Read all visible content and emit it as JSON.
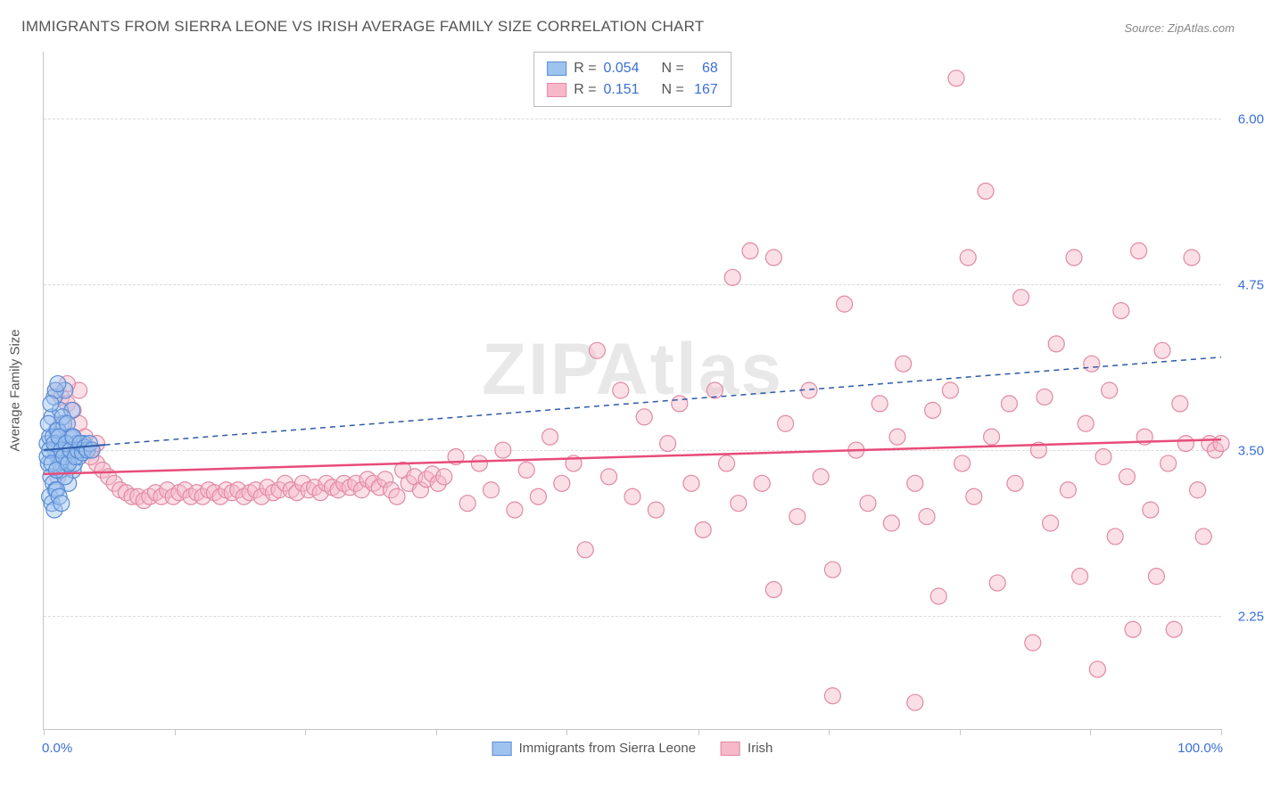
{
  "title": "IMMIGRANTS FROM SIERRA LEONE VS IRISH AVERAGE FAMILY SIZE CORRELATION CHART",
  "source_prefix": "Source: ",
  "source_name": "ZipAtlas.com",
  "watermark": "ZIPAtlas",
  "y_axis_title": "Average Family Size",
  "chart": {
    "type": "scatter",
    "xlim": [
      0,
      100
    ],
    "ylim": [
      1.4,
      6.5
    ],
    "y_ticks": [
      2.25,
      3.5,
      4.75,
      6.0
    ],
    "y_tick_labels": [
      "2.25",
      "3.50",
      "4.75",
      "6.00"
    ],
    "x_ticks": [
      0,
      11.1,
      22.2,
      33.3,
      44.4,
      55.6,
      66.7,
      77.8,
      88.9,
      100
    ],
    "x_label_min": "0.0%",
    "x_label_max": "100.0%",
    "background_color": "#ffffff",
    "grid_color": "#d9d9d9",
    "axis_color": "#c7c7c7",
    "marker_radius": 9,
    "marker_stroke_width": 1.2,
    "series": [
      {
        "name": "Immigrants from Sierra Leone",
        "fill_color": "#9ec3ef",
        "fill_opacity": 0.45,
        "stroke_color": "#5a8bd4",
        "R": "0.054",
        "N": "68",
        "trend": {
          "x1": 0,
          "y1": 3.5,
          "x2": 5.2,
          "y2": 3.54,
          "ext_x2": 100,
          "ext_y2": 4.2,
          "color": "#2e5aa8",
          "width": 2,
          "dash": "6,5"
        },
        "points": [
          [
            0.3,
            3.55
          ],
          [
            0.4,
            3.4
          ],
          [
            0.5,
            3.6
          ],
          [
            0.6,
            3.3
          ],
          [
            0.7,
            3.75
          ],
          [
            0.8,
            3.25
          ],
          [
            0.9,
            3.9
          ],
          [
            1.0,
            3.2
          ],
          [
            1.1,
            3.65
          ],
          [
            1.2,
            3.45
          ],
          [
            1.3,
            3.55
          ],
          [
            1.4,
            3.8
          ],
          [
            1.5,
            3.35
          ],
          [
            1.6,
            3.5
          ],
          [
            1.7,
            3.7
          ],
          [
            1.8,
            3.95
          ],
          [
            1.9,
            3.4
          ],
          [
            2.0,
            3.55
          ],
          [
            2.1,
            3.25
          ],
          [
            2.2,
            3.6
          ],
          [
            2.3,
            3.45
          ],
          [
            2.4,
            3.8
          ],
          [
            2.5,
            3.35
          ],
          [
            2.6,
            3.5
          ],
          [
            0.5,
            3.15
          ],
          [
            0.7,
            3.1
          ],
          [
            0.9,
            3.05
          ],
          [
            1.1,
            3.2
          ],
          [
            1.3,
            3.15
          ],
          [
            1.5,
            3.1
          ],
          [
            1.0,
            3.95
          ],
          [
            1.2,
            4.0
          ],
          [
            0.4,
            3.7
          ],
          [
            0.6,
            3.85
          ],
          [
            0.8,
            3.6
          ],
          [
            1.0,
            3.5
          ],
          [
            1.2,
            3.65
          ],
          [
            1.4,
            3.4
          ],
          [
            1.6,
            3.75
          ],
          [
            1.8,
            3.3
          ],
          [
            2.0,
            3.7
          ],
          [
            2.2,
            3.5
          ],
          [
            2.4,
            3.6
          ],
          [
            2.6,
            3.4
          ],
          [
            2.8,
            3.55
          ],
          [
            3.0,
            3.45
          ],
          [
            3.2,
            3.5
          ],
          [
            3.4,
            3.55
          ],
          [
            0.3,
            3.45
          ],
          [
            0.5,
            3.5
          ],
          [
            0.7,
            3.4
          ],
          [
            0.9,
            3.55
          ],
          [
            1.1,
            3.35
          ],
          [
            1.3,
            3.6
          ],
          [
            1.5,
            3.5
          ],
          [
            1.7,
            3.45
          ],
          [
            1.9,
            3.55
          ],
          [
            2.1,
            3.4
          ],
          [
            2.3,
            3.5
          ],
          [
            2.5,
            3.6
          ],
          [
            2.7,
            3.45
          ],
          [
            2.9,
            3.5
          ],
          [
            3.1,
            3.55
          ],
          [
            3.3,
            3.48
          ],
          [
            3.5,
            3.52
          ],
          [
            3.7,
            3.5
          ],
          [
            3.9,
            3.55
          ],
          [
            4.1,
            3.5
          ]
        ]
      },
      {
        "name": "Irish",
        "fill_color": "#f7b8c9",
        "fill_opacity": 0.45,
        "stroke_color": "#e08aa3",
        "R": "0.151",
        "N": "167",
        "trend": {
          "x1": 0,
          "y1": 3.32,
          "x2": 100,
          "y2": 3.58,
          "color": "#e84c7a",
          "width": 2.5,
          "dash": ""
        },
        "points": [
          [
            1.0,
            3.95
          ],
          [
            1.5,
            3.9
          ],
          [
            2.0,
            3.85
          ],
          [
            2.5,
            3.8
          ],
          [
            3.0,
            3.7
          ],
          [
            3.5,
            3.6
          ],
          [
            4.0,
            3.5
          ],
          [
            4.5,
            3.4
          ],
          [
            5.0,
            3.35
          ],
          [
            5.5,
            3.3
          ],
          [
            6.0,
            3.25
          ],
          [
            6.5,
            3.2
          ],
          [
            7.0,
            3.18
          ],
          [
            7.5,
            3.15
          ],
          [
            8.0,
            3.15
          ],
          [
            8.5,
            3.12
          ],
          [
            9.0,
            3.15
          ],
          [
            9.5,
            3.18
          ],
          [
            10.0,
            3.15
          ],
          [
            10.5,
            3.2
          ],
          [
            11.0,
            3.15
          ],
          [
            11.5,
            3.18
          ],
          [
            12.0,
            3.2
          ],
          [
            12.5,
            3.15
          ],
          [
            13.0,
            3.18
          ],
          [
            13.5,
            3.15
          ],
          [
            14.0,
            3.2
          ],
          [
            14.5,
            3.18
          ],
          [
            15.0,
            3.15
          ],
          [
            15.5,
            3.2
          ],
          [
            16.0,
            3.18
          ],
          [
            16.5,
            3.2
          ],
          [
            17.0,
            3.15
          ],
          [
            17.5,
            3.18
          ],
          [
            18.0,
            3.2
          ],
          [
            18.5,
            3.15
          ],
          [
            19.0,
            3.22
          ],
          [
            19.5,
            3.18
          ],
          [
            20.0,
            3.2
          ],
          [
            20.5,
            3.25
          ],
          [
            21.0,
            3.2
          ],
          [
            21.5,
            3.18
          ],
          [
            22.0,
            3.25
          ],
          [
            22.5,
            3.2
          ],
          [
            23.0,
            3.22
          ],
          [
            23.5,
            3.18
          ],
          [
            24.0,
            3.25
          ],
          [
            24.5,
            3.22
          ],
          [
            25.0,
            3.2
          ],
          [
            25.5,
            3.25
          ],
          [
            26.0,
            3.22
          ],
          [
            26.5,
            3.25
          ],
          [
            27.0,
            3.2
          ],
          [
            27.5,
            3.28
          ],
          [
            28.0,
            3.25
          ],
          [
            28.5,
            3.22
          ],
          [
            29.0,
            3.28
          ],
          [
            29.5,
            3.2
          ],
          [
            30.0,
            3.15
          ],
          [
            30.5,
            3.35
          ],
          [
            31.0,
            3.25
          ],
          [
            31.5,
            3.3
          ],
          [
            32.0,
            3.2
          ],
          [
            32.5,
            3.28
          ],
          [
            33.0,
            3.32
          ],
          [
            33.5,
            3.25
          ],
          [
            34.0,
            3.3
          ],
          [
            35.0,
            3.45
          ],
          [
            36.0,
            3.1
          ],
          [
            37.0,
            3.4
          ],
          [
            38.0,
            3.2
          ],
          [
            39.0,
            3.5
          ],
          [
            40.0,
            3.05
          ],
          [
            41.0,
            3.35
          ],
          [
            42.0,
            3.15
          ],
          [
            43.0,
            3.6
          ],
          [
            44.0,
            3.25
          ],
          [
            45.0,
            3.4
          ],
          [
            46.0,
            2.75
          ],
          [
            47.0,
            4.25
          ],
          [
            48.0,
            3.3
          ],
          [
            49.0,
            3.95
          ],
          [
            50.0,
            3.15
          ],
          [
            51.0,
            3.75
          ],
          [
            52.0,
            3.05
          ],
          [
            53.0,
            3.55
          ],
          [
            54.0,
            3.85
          ],
          [
            55.0,
            3.25
          ],
          [
            56.0,
            2.9
          ],
          [
            57.0,
            3.95
          ],
          [
            58.0,
            3.4
          ],
          [
            58.5,
            4.8
          ],
          [
            59.0,
            3.1
          ],
          [
            60.0,
            5.0
          ],
          [
            61.0,
            3.25
          ],
          [
            62.0,
            2.45
          ],
          [
            63.0,
            3.7
          ],
          [
            64.0,
            3.0
          ],
          [
            65.0,
            3.95
          ],
          [
            66.0,
            3.3
          ],
          [
            67.0,
            2.6
          ],
          [
            68.0,
            4.6
          ],
          [
            69.0,
            3.5
          ],
          [
            70.0,
            3.1
          ],
          [
            71.0,
            3.85
          ],
          [
            72.0,
            2.95
          ],
          [
            72.5,
            3.6
          ],
          [
            73.0,
            4.15
          ],
          [
            74.0,
            3.25
          ],
          [
            75.0,
            3.0
          ],
          [
            75.5,
            3.8
          ],
          [
            76.0,
            2.4
          ],
          [
            77.0,
            3.95
          ],
          [
            77.5,
            6.3
          ],
          [
            78.0,
            3.4
          ],
          [
            78.5,
            4.95
          ],
          [
            79.0,
            3.15
          ],
          [
            80.0,
            5.45
          ],
          [
            80.5,
            3.6
          ],
          [
            81.0,
            2.5
          ],
          [
            82.0,
            3.85
          ],
          [
            82.5,
            3.25
          ],
          [
            83.0,
            4.65
          ],
          [
            84.0,
            2.05
          ],
          [
            84.5,
            3.5
          ],
          [
            85.0,
            3.9
          ],
          [
            85.5,
            2.95
          ],
          [
            86.0,
            4.3
          ],
          [
            87.0,
            3.2
          ],
          [
            87.5,
            4.95
          ],
          [
            88.0,
            2.55
          ],
          [
            88.5,
            3.7
          ],
          [
            89.0,
            4.15
          ],
          [
            89.5,
            1.85
          ],
          [
            90.0,
            3.45
          ],
          [
            90.5,
            3.95
          ],
          [
            91.0,
            2.85
          ],
          [
            91.5,
            4.55
          ],
          [
            92.0,
            3.3
          ],
          [
            92.5,
            2.15
          ],
          [
            93.0,
            5.0
          ],
          [
            93.5,
            3.6
          ],
          [
            94.0,
            3.05
          ],
          [
            94.5,
            2.55
          ],
          [
            95.0,
            4.25
          ],
          [
            95.5,
            3.4
          ],
          [
            96.0,
            2.15
          ],
          [
            96.5,
            3.85
          ],
          [
            97.0,
            3.55
          ],
          [
            97.5,
            4.95
          ],
          [
            98.0,
            3.2
          ],
          [
            98.5,
            2.85
          ],
          [
            99.0,
            3.55
          ],
          [
            99.5,
            3.5
          ],
          [
            100.0,
            3.55
          ],
          [
            67.0,
            1.65
          ],
          [
            74.0,
            1.6
          ],
          [
            62.0,
            4.95
          ],
          [
            3.0,
            3.95
          ],
          [
            2.0,
            4.0
          ],
          [
            1.5,
            3.7
          ],
          [
            2.5,
            3.6
          ],
          [
            3.5,
            3.5
          ],
          [
            4.0,
            3.45
          ],
          [
            4.5,
            3.55
          ],
          [
            1.0,
            3.5
          ],
          [
            1.2,
            3.3
          ]
        ]
      }
    ]
  },
  "legend": {
    "R_label": "R =",
    "N_label": "N ="
  },
  "bottom_legend": [
    {
      "label": "Immigrants from Sierra Leone",
      "fill": "#9ec3ef",
      "stroke": "#5a8bd4"
    },
    {
      "label": "Irish",
      "fill": "#f7b8c9",
      "stroke": "#e08aa3"
    }
  ]
}
